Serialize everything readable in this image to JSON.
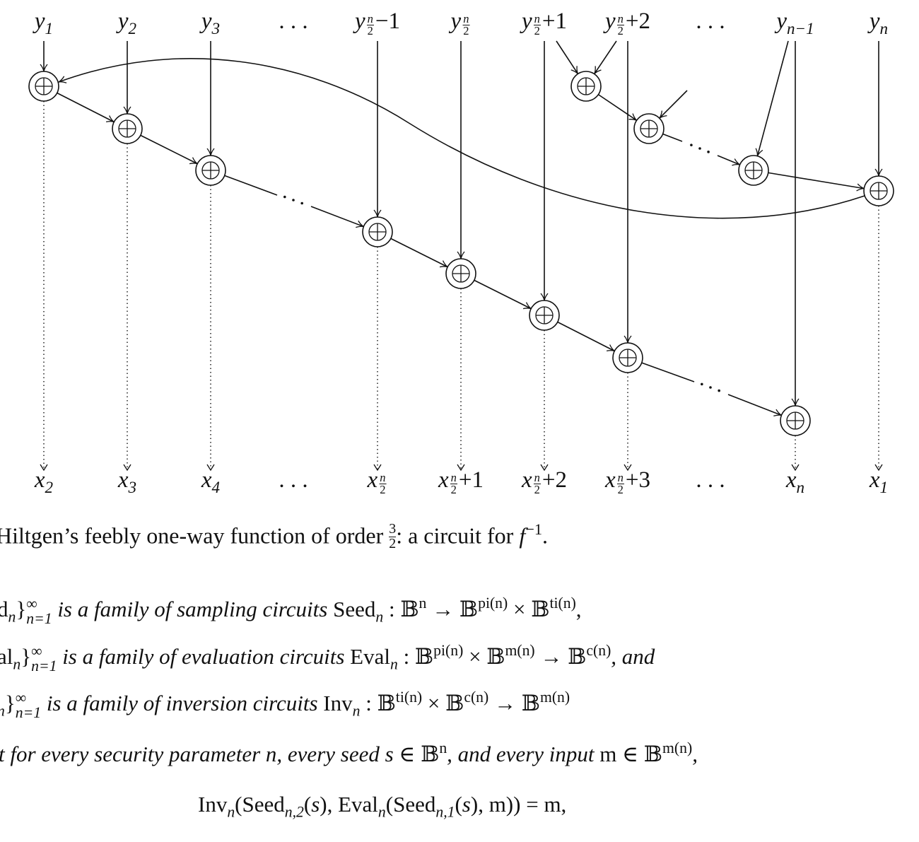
{
  "diagram": {
    "inputs": [
      [
        {
          "k": "i",
          "t": "y"
        },
        {
          "k": "sub",
          "t": "1"
        }
      ],
      [
        {
          "k": "i",
          "t": "y"
        },
        {
          "k": "sub",
          "t": "2"
        }
      ],
      [
        {
          "k": "i",
          "t": "y"
        },
        {
          "k": "sub",
          "t": "3"
        }
      ],
      [
        {
          "k": "r",
          "t": ". . ."
        }
      ],
      [
        {
          "k": "i",
          "t": "y"
        },
        {
          "k": "frac",
          "num": "n",
          "den": "2"
        },
        {
          "k": "r",
          "t": "−1"
        }
      ],
      [
        {
          "k": "i",
          "t": "y"
        },
        {
          "k": "frac",
          "num": "n",
          "den": "2"
        }
      ],
      [
        {
          "k": "i",
          "t": "y"
        },
        {
          "k": "frac",
          "num": "n",
          "den": "2"
        },
        {
          "k": "r",
          "t": "+1"
        }
      ],
      [
        {
          "k": "i",
          "t": "y"
        },
        {
          "k": "frac",
          "num": "n",
          "den": "2"
        },
        {
          "k": "r",
          "t": "+2"
        }
      ],
      [
        {
          "k": "r",
          "t": ". . ."
        }
      ],
      [
        {
          "k": "i",
          "t": "y"
        },
        {
          "k": "sub",
          "t": "n−1"
        }
      ],
      [
        {
          "k": "i",
          "t": "y"
        },
        {
          "k": "sub",
          "t": "n"
        }
      ]
    ],
    "outputs": [
      [
        {
          "k": "i",
          "t": "x"
        },
        {
          "k": "sub",
          "t": "2"
        }
      ],
      [
        {
          "k": "i",
          "t": "x"
        },
        {
          "k": "sub",
          "t": "3"
        }
      ],
      [
        {
          "k": "i",
          "t": "x"
        },
        {
          "k": "sub",
          "t": "4"
        }
      ],
      [
        {
          "k": "r",
          "t": ". . ."
        }
      ],
      [
        {
          "k": "i",
          "t": "x"
        },
        {
          "k": "frac",
          "num": "n",
          "den": "2"
        }
      ],
      [
        {
          "k": "i",
          "t": "x"
        },
        {
          "k": "frac",
          "num": "n",
          "den": "2"
        },
        {
          "k": "r",
          "t": "+1"
        }
      ],
      [
        {
          "k": "i",
          "t": "x"
        },
        {
          "k": "frac",
          "num": "n",
          "den": "2"
        },
        {
          "k": "r",
          "t": "+2"
        }
      ],
      [
        {
          "k": "i",
          "t": "x"
        },
        {
          "k": "frac",
          "num": "n",
          "den": "2"
        },
        {
          "k": "r",
          "t": "+3"
        }
      ],
      [
        {
          "k": "r",
          "t": ". . ."
        }
      ],
      [
        {
          "k": "i",
          "t": "x"
        },
        {
          "k": "sub",
          "t": "n"
        }
      ],
      [
        {
          "k": "i",
          "t": "x"
        },
        {
          "k": "sub",
          "t": "1"
        }
      ]
    ],
    "node_symbol": "⊕",
    "ellipsis": ". . ."
  },
  "caption": [
    {
      "k": "r",
      "t": "Hiltgen’s feebly one-way function of order "
    },
    {
      "k": "bigfrac",
      "num": "3",
      "den": "2"
    },
    {
      "k": "r",
      "t": ": a circuit for "
    },
    {
      "k": "i",
      "t": "f"
    },
    {
      "k": "sup",
      "t": "−1"
    },
    {
      "k": "r",
      "t": "."
    }
  ],
  "text_lines": [
    [
      {
        "k": "r",
        "t": "d"
      },
      {
        "k": "sub",
        "t": "n"
      },
      {
        "k": "r",
        "t": "}"
      },
      {
        "k": "ss",
        "sup": "∞",
        "sub": "n=1"
      },
      {
        "k": "i",
        "t": " is a family of sampling circuits "
      },
      {
        "k": "r",
        "t": "Seed"
      },
      {
        "k": "sub",
        "t": "n"
      },
      {
        "k": "r",
        "t": " : 𝔹"
      },
      {
        "k": "sup",
        "t": "n"
      },
      {
        "k": "r",
        "t": " → 𝔹"
      },
      {
        "k": "sup",
        "t": "pi(n)"
      },
      {
        "k": "r",
        "t": " × 𝔹"
      },
      {
        "k": "sup",
        "t": "ti(n)"
      },
      {
        "k": "r",
        "t": ","
      }
    ],
    [
      {
        "k": "r",
        "t": "al"
      },
      {
        "k": "sub",
        "t": "n"
      },
      {
        "k": "r",
        "t": "}"
      },
      {
        "k": "ss",
        "sup": "∞",
        "sub": "n=1"
      },
      {
        "k": "i",
        "t": " is a family of evaluation circuits "
      },
      {
        "k": "r",
        "t": "Eval"
      },
      {
        "k": "sub",
        "t": "n"
      },
      {
        "k": "r",
        "t": " : 𝔹"
      },
      {
        "k": "sup",
        "t": "pi(n)"
      },
      {
        "k": "r",
        "t": " × 𝔹"
      },
      {
        "k": "sup",
        "t": "m(n)"
      },
      {
        "k": "r",
        "t": " → 𝔹"
      },
      {
        "k": "sup",
        "t": "c(n)"
      },
      {
        "k": "i",
        "t": ", and"
      }
    ],
    [
      {
        "k": "sub",
        "t": "n"
      },
      {
        "k": "r",
        "t": "}"
      },
      {
        "k": "ss",
        "sup": "∞",
        "sub": "n=1"
      },
      {
        "k": "i",
        "t": " is a family of inversion circuits "
      },
      {
        "k": "r",
        "t": "Inv"
      },
      {
        "k": "sub",
        "t": "n"
      },
      {
        "k": "r",
        "t": " : 𝔹"
      },
      {
        "k": "sup",
        "t": "ti(n)"
      },
      {
        "k": "r",
        "t": " × 𝔹"
      },
      {
        "k": "sup",
        "t": "c(n)"
      },
      {
        "k": "r",
        "t": " → 𝔹"
      },
      {
        "k": "sup",
        "t": "m(n)"
      }
    ],
    [
      {
        "k": "i",
        "t": "t for every security parameter n, every seed s "
      },
      {
        "k": "r",
        "t": "∈ 𝔹"
      },
      {
        "k": "sup",
        "t": "n"
      },
      {
        "k": "i",
        "t": ", and every input "
      },
      {
        "k": "r",
        "t": "m ∈ 𝔹"
      },
      {
        "k": "sup",
        "t": "m(n)"
      },
      {
        "k": "i",
        "t": ","
      }
    ],
    [
      {
        "k": "r",
        "t": "Inv"
      },
      {
        "k": "sub",
        "t": "n"
      },
      {
        "k": "r",
        "t": "(Seed"
      },
      {
        "k": "sub",
        "t": "n,2"
      },
      {
        "k": "r",
        "t": "("
      },
      {
        "k": "i",
        "t": "s"
      },
      {
        "k": "r",
        "t": "), Eval"
      },
      {
        "k": "sub",
        "t": "n"
      },
      {
        "k": "r",
        "t": "(Seed"
      },
      {
        "k": "sub",
        "t": "n,1"
      },
      {
        "k": "r",
        "t": "("
      },
      {
        "k": "i",
        "t": "s"
      },
      {
        "k": "r",
        "t": "), m)) = m,"
      }
    ]
  ]
}
